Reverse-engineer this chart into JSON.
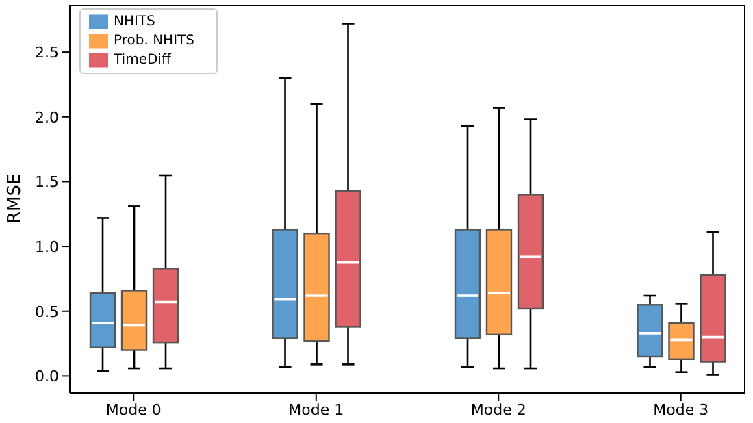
{
  "chart_data": {
    "type": "box",
    "ylabel": "RMSE",
    "categories": [
      "Mode 0",
      "Mode 1",
      "Mode 2",
      "Mode 3"
    ],
    "series": [
      {
        "name": "NHITS",
        "color": "#5b9bd0",
        "boxes": [
          {
            "low": 0.04,
            "q1": 0.22,
            "median": 0.41,
            "q3": 0.64,
            "high": 1.22
          },
          {
            "low": 0.07,
            "q1": 0.29,
            "median": 0.59,
            "q3": 1.13,
            "high": 2.3
          },
          {
            "low": 0.07,
            "q1": 0.29,
            "median": 0.62,
            "q3": 1.13,
            "high": 1.93
          },
          {
            "low": 0.07,
            "q1": 0.15,
            "median": 0.33,
            "q3": 0.55,
            "high": 0.62
          }
        ]
      },
      {
        "name": "Prob. NHITS",
        "color": "#ffa54f",
        "boxes": [
          {
            "low": 0.06,
            "q1": 0.2,
            "median": 0.39,
            "q3": 0.66,
            "high": 1.31
          },
          {
            "low": 0.09,
            "q1": 0.27,
            "median": 0.62,
            "q3": 1.1,
            "high": 2.1
          },
          {
            "low": 0.06,
            "q1": 0.32,
            "median": 0.64,
            "q3": 1.13,
            "high": 2.07
          },
          {
            "low": 0.03,
            "q1": 0.13,
            "median": 0.28,
            "q3": 0.41,
            "high": 0.56
          }
        ]
      },
      {
        "name": "TimeDiff",
        "color": "#e0636a",
        "boxes": [
          {
            "low": 0.06,
            "q1": 0.26,
            "median": 0.57,
            "q3": 0.83,
            "high": 1.55
          },
          {
            "low": 0.09,
            "q1": 0.38,
            "median": 0.88,
            "q3": 1.43,
            "high": 2.72
          },
          {
            "low": 0.06,
            "q1": 0.52,
            "median": 0.92,
            "q3": 1.4,
            "high": 1.98
          },
          {
            "low": 0.01,
            "q1": 0.11,
            "median": 0.3,
            "q3": 0.78,
            "high": 1.11
          }
        ]
      }
    ],
    "ylim": [
      -0.13,
      2.86
    ],
    "yticks": [
      {
        "value": 0,
        "label": "0.0"
      },
      {
        "value": 0.5,
        "label": "0.5"
      },
      {
        "value": 1,
        "label": "1.0"
      },
      {
        "value": 1.5,
        "label": "1.5"
      },
      {
        "value": 2,
        "label": "2.0"
      },
      {
        "value": 2.5,
        "label": "2.5"
      }
    ],
    "grid": false,
    "legend": "top left"
  }
}
